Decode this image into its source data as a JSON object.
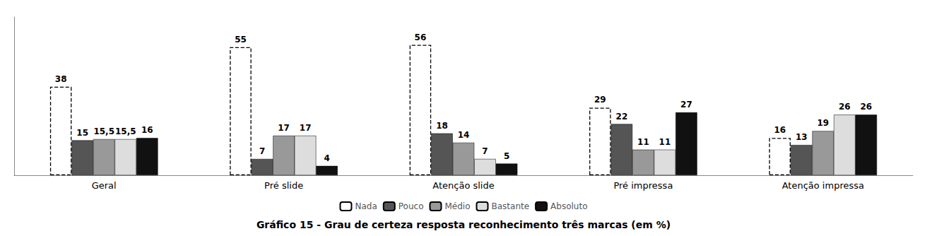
{
  "chart_data": {
    "type": "bar",
    "title": "Gráfico 15 - Grau de certeza resposta reconhecimento três marcas (em %)",
    "categories": [
      "Geral",
      "Pré slide",
      "Atenção slide",
      "Pré impressa",
      "Atenção impressa"
    ],
    "series": [
      {
        "name": "Nada",
        "color": "#ffffff",
        "line_style": "dashed",
        "values": [
          38,
          55,
          56,
          29,
          16
        ]
      },
      {
        "name": "Pouco",
        "color": "#555555",
        "values": [
          15,
          7,
          18,
          22,
          13
        ]
      },
      {
        "name": "Médio",
        "color": "#999999",
        "values": [
          15.5,
          17,
          14,
          11,
          19
        ],
        "value_labels": [
          "15,5",
          "17",
          "14",
          "11",
          "19"
        ]
      },
      {
        "name": "Bastante",
        "color": "#dddddd",
        "values": [
          15.5,
          17,
          7,
          11,
          26
        ],
        "value_labels": [
          "15,5",
          "17",
          "7",
          "11",
          "26"
        ]
      },
      {
        "name": "Absoluto",
        "color": "#111111",
        "values": [
          16,
          4,
          5,
          27,
          26
        ]
      }
    ],
    "ylim": [
      0,
      68
    ],
    "yticks": [],
    "grid": false,
    "legend": "bottom",
    "data_labels": true,
    "tick_labels": "x"
  }
}
